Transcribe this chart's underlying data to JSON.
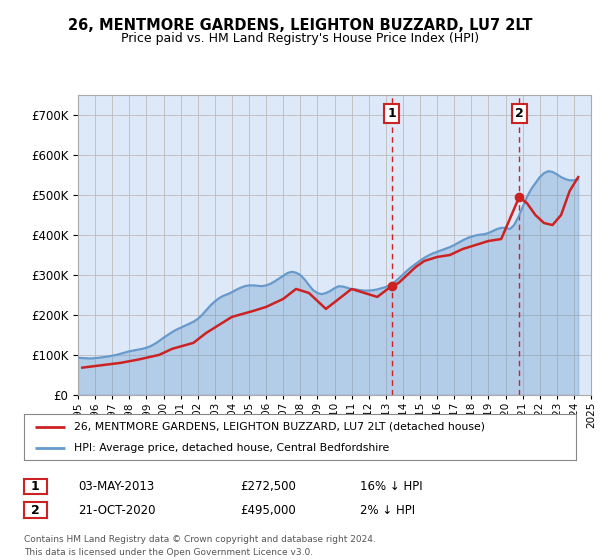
{
  "title": "26, MENTMORE GARDENS, LEIGHTON BUZZARD, LU7 2LT",
  "subtitle": "Price paid vs. HM Land Registry's House Price Index (HPI)",
  "legend_line1": "26, MENTMORE GARDENS, LEIGHTON BUZZARD, LU7 2LT (detached house)",
  "legend_line2": "HPI: Average price, detached house, Central Bedfordshire",
  "annotation1_label": "1",
  "annotation1_date": "03-MAY-2013",
  "annotation1_price": "£272,500",
  "annotation1_hpi": "16% ↓ HPI",
  "annotation1_year": 2013.35,
  "annotation1_value": 272500,
  "annotation2_label": "2",
  "annotation2_date": "21-OCT-2020",
  "annotation2_price": "£495,000",
  "annotation2_hpi": "2% ↓ HPI",
  "annotation2_year": 2020.8,
  "annotation2_value": 495000,
  "footnote1": "Contains HM Land Registry data © Crown copyright and database right 2024.",
  "footnote2": "This data is licensed under the Open Government Licence v3.0.",
  "hpi_color": "#6699cc",
  "price_color": "#cc2222",
  "bg_color": "#ffffff",
  "plot_bg_color": "#dde8f8",
  "grid_color": "#bbbbbb",
  "ylim_min": 0,
  "ylim_max": 750000,
  "hpi_years": [
    1995.0,
    1995.25,
    1995.5,
    1995.75,
    1996.0,
    1996.25,
    1996.5,
    1996.75,
    1997.0,
    1997.25,
    1997.5,
    1997.75,
    1998.0,
    1998.25,
    1998.5,
    1998.75,
    1999.0,
    1999.25,
    1999.5,
    1999.75,
    2000.0,
    2000.25,
    2000.5,
    2000.75,
    2001.0,
    2001.25,
    2001.5,
    2001.75,
    2002.0,
    2002.25,
    2002.5,
    2002.75,
    2003.0,
    2003.25,
    2003.5,
    2003.75,
    2004.0,
    2004.25,
    2004.5,
    2004.75,
    2005.0,
    2005.25,
    2005.5,
    2005.75,
    2006.0,
    2006.25,
    2006.5,
    2006.75,
    2007.0,
    2007.25,
    2007.5,
    2007.75,
    2008.0,
    2008.25,
    2008.5,
    2008.75,
    2009.0,
    2009.25,
    2009.5,
    2009.75,
    2010.0,
    2010.25,
    2010.5,
    2010.75,
    2011.0,
    2011.25,
    2011.5,
    2011.75,
    2012.0,
    2012.25,
    2012.5,
    2012.75,
    2013.0,
    2013.25,
    2013.5,
    2013.75,
    2014.0,
    2014.25,
    2014.5,
    2014.75,
    2015.0,
    2015.25,
    2015.5,
    2015.75,
    2016.0,
    2016.25,
    2016.5,
    2016.75,
    2017.0,
    2017.25,
    2017.5,
    2017.75,
    2018.0,
    2018.25,
    2018.5,
    2018.75,
    2019.0,
    2019.25,
    2019.5,
    2019.75,
    2020.0,
    2020.25,
    2020.5,
    2020.75,
    2021.0,
    2021.25,
    2021.5,
    2021.75,
    2022.0,
    2022.25,
    2022.5,
    2022.75,
    2023.0,
    2023.25,
    2023.5,
    2023.75,
    2024.0,
    2024.25
  ],
  "hpi_values": [
    93000,
    92000,
    91500,
    91000,
    92000,
    93000,
    94500,
    96000,
    98000,
    100000,
    103000,
    106000,
    109000,
    111000,
    113000,
    115000,
    118000,
    122000,
    128000,
    135000,
    143000,
    150000,
    157000,
    163000,
    168000,
    173000,
    178000,
    183000,
    190000,
    200000,
    212000,
    224000,
    234000,
    242000,
    248000,
    252000,
    257000,
    263000,
    268000,
    272000,
    274000,
    274000,
    273000,
    272000,
    274000,
    278000,
    284000,
    291000,
    298000,
    305000,
    308000,
    306000,
    300000,
    289000,
    275000,
    262000,
    255000,
    252000,
    255000,
    260000,
    267000,
    272000,
    271000,
    268000,
    264000,
    264000,
    262000,
    261000,
    261000,
    262000,
    264000,
    267000,
    270000,
    275000,
    282000,
    291000,
    301000,
    311000,
    320000,
    328000,
    336000,
    343000,
    349000,
    354000,
    358000,
    362000,
    366000,
    370000,
    375000,
    381000,
    387000,
    392000,
    396000,
    399000,
    401000,
    402000,
    405000,
    410000,
    415000,
    418000,
    418000,
    415000,
    425000,
    445000,
    470000,
    495000,
    515000,
    530000,
    545000,
    555000,
    560000,
    558000,
    552000,
    545000,
    540000,
    537000,
    537000,
    540000
  ],
  "price_years": [
    1995.25,
    1996.0,
    1997.5,
    1998.5,
    1999.75,
    2000.5,
    2001.75,
    2002.5,
    2003.25,
    2004.0,
    2005.25,
    2006.0,
    2007.0,
    2007.75,
    2008.5,
    2009.5,
    2010.25,
    2011.0,
    2011.75,
    2012.5,
    2013.35,
    2013.75,
    2014.25,
    2014.75,
    2015.25,
    2016.0,
    2016.75,
    2017.5,
    2018.25,
    2019.0,
    2019.75,
    2020.8,
    2021.25,
    2021.75,
    2022.25,
    2022.75,
    2023.25,
    2023.75,
    2024.25
  ],
  "price_values": [
    68000,
    72000,
    80000,
    88000,
    100000,
    115000,
    130000,
    155000,
    175000,
    195000,
    210000,
    220000,
    240000,
    265000,
    255000,
    215000,
    240000,
    265000,
    255000,
    245000,
    272500,
    280000,
    300000,
    320000,
    335000,
    345000,
    350000,
    365000,
    375000,
    385000,
    390000,
    495000,
    480000,
    450000,
    430000,
    425000,
    450000,
    510000,
    545000
  ]
}
